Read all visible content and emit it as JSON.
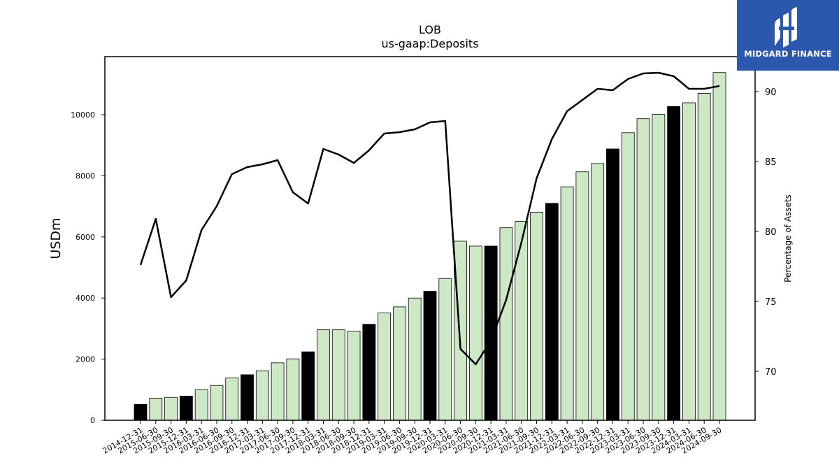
{
  "brand": {
    "name": "MIDGARD FINANCE",
    "icon": "midgard-logo-icon",
    "color": "#2b58ad"
  },
  "chart_data": {
    "type": "bar",
    "title": "LOB",
    "subtitle": "us-gaap:Deposits",
    "ylabel": "USDm",
    "y2label": "Percentage of Assets",
    "ylim": [
      0,
      11900
    ],
    "y2lim": [
      66.5,
      92.5
    ],
    "yticks": [
      0,
      2000,
      4000,
      6000,
      8000,
      10000
    ],
    "y2ticks": [
      70,
      75,
      80,
      85,
      90
    ],
    "grid": false,
    "categories": [
      "2014-12-31",
      "2015-06-30",
      "2015-09-30",
      "2015-12-31",
      "2016-03-31",
      "2016-06-30",
      "2016-09-30",
      "2016-12-31",
      "2017-03-31",
      "2017-06-30",
      "2017-09-30",
      "2017-12-31",
      "2018-03-31",
      "2018-06-30",
      "2018-09-30",
      "2018-12-31",
      "2019-03-31",
      "2019-06-30",
      "2019-09-30",
      "2019-12-31",
      "2020-03-31",
      "2020-06-30",
      "2020-09-30",
      "2020-12-31",
      "2021-03-31",
      "2021-06-30",
      "2021-09-30",
      "2021-12-31",
      "2022-03-31",
      "2022-06-30",
      "2022-09-30",
      "2022-12-31",
      "2023-03-31",
      "2023-06-30",
      "2023-09-30",
      "2023-12-31",
      "2024-03-31",
      "2024-06-30",
      "2024-09-30"
    ],
    "series": [
      {
        "kind": "bar",
        "values": [
          520,
          720,
          750,
          790,
          1000,
          1140,
          1390,
          1490,
          1620,
          1880,
          2010,
          2240,
          2960,
          2960,
          2920,
          3140,
          3510,
          3710,
          4000,
          4220,
          4640,
          5860,
          5700,
          5700,
          6300,
          6510,
          6810,
          7100,
          7640,
          8130,
          8400,
          8880,
          9410,
          9870,
          10010,
          10270,
          10390,
          10700,
          11380
        ],
        "colors": {
          "year_end": "#000000",
          "interim": "#cce8c4"
        },
        "year_end_flags": [
          true,
          false,
          false,
          true,
          false,
          false,
          false,
          true,
          false,
          false,
          false,
          true,
          false,
          false,
          false,
          true,
          false,
          false,
          false,
          true,
          false,
          false,
          false,
          true,
          false,
          false,
          false,
          true,
          false,
          false,
          false,
          true,
          false,
          false,
          false,
          true,
          false,
          false,
          false
        ]
      },
      {
        "kind": "line",
        "axis": "right",
        "color": "#000000",
        "values": [
          77.6,
          80.9,
          75.3,
          76.5,
          80.1,
          81.8,
          84.1,
          84.6,
          84.8,
          85.1,
          82.8,
          82.0,
          85.9,
          85.5,
          84.9,
          85.8,
          87.0,
          87.1,
          87.3,
          87.8,
          87.9,
          71.6,
          70.5,
          72.2,
          75.1,
          79.2,
          83.8,
          86.6,
          88.6,
          89.4,
          90.2,
          90.1,
          90.9,
          91.3,
          91.35,
          91.1,
          90.2,
          90.2,
          90.4
        ]
      }
    ]
  }
}
